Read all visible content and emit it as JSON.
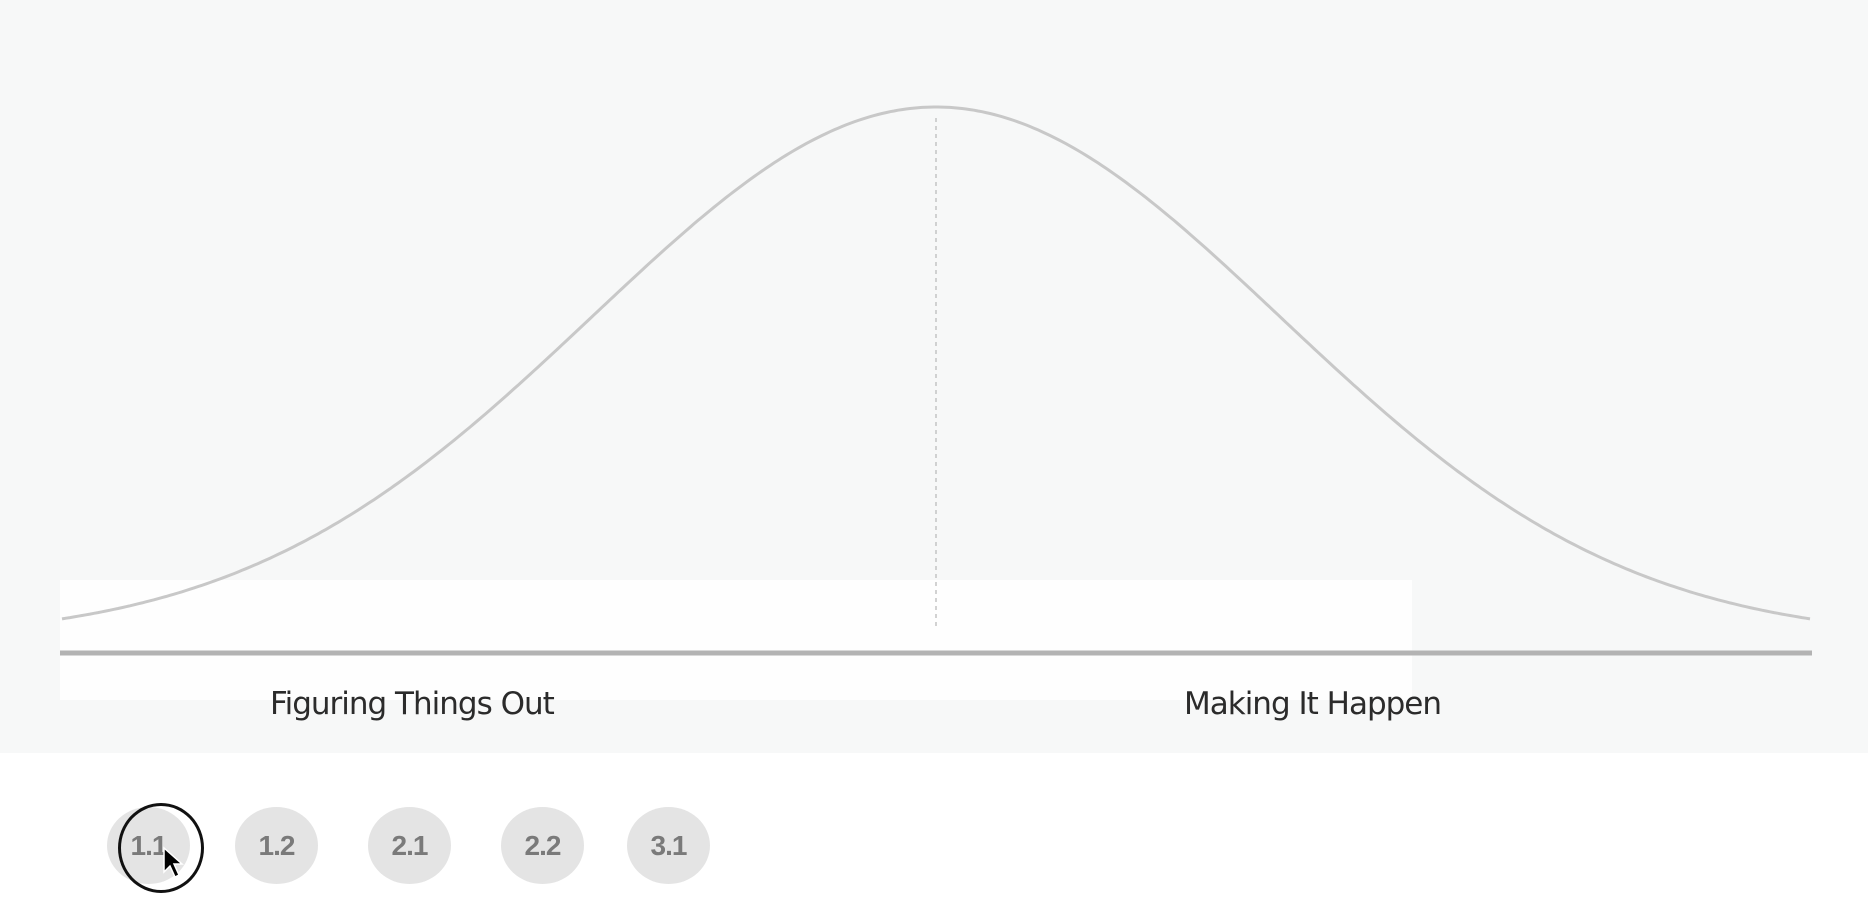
{
  "diagram": {
    "phases": [
      "Figuring Things Out",
      "Making It Happen"
    ],
    "curve_color": "#c8c8c8",
    "axis_color": "#b3b3b3"
  },
  "steps": [
    "1.1",
    "1.2",
    "2.1",
    "2.2",
    "3.1"
  ],
  "active_step": "1.1"
}
